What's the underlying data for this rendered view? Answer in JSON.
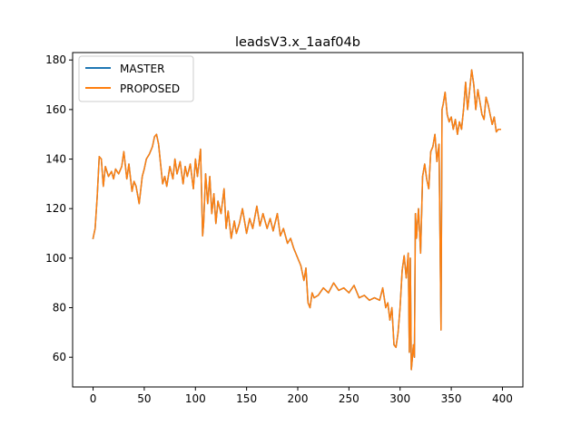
{
  "chart_data": {
    "type": "line",
    "title": "leadsV3.x_1aaf04b",
    "xlabel": "",
    "ylabel": "",
    "xlim": [
      -20,
      420
    ],
    "ylim": [
      48,
      183
    ],
    "xticks": [
      0,
      50,
      100,
      150,
      200,
      250,
      300,
      350,
      400
    ],
    "yticks": [
      60,
      80,
      100,
      120,
      140,
      160,
      180
    ],
    "grid": false,
    "legend_position": "top-left",
    "series": [
      {
        "name": "MASTER",
        "color": "#1f77b4",
        "x": [
          0,
          2,
          4,
          6,
          8,
          10,
          12,
          15,
          18,
          20,
          22,
          25,
          28,
          30,
          33,
          35,
          38,
          40,
          42,
          45,
          48,
          50,
          52,
          55,
          58,
          60,
          62,
          64,
          66,
          68,
          70,
          72,
          75,
          78,
          80,
          82,
          85,
          88,
          90,
          92,
          95,
          98,
          100,
          102,
          105,
          107,
          108,
          110,
          112,
          114,
          116,
          118,
          120,
          122,
          125,
          128,
          130,
          132,
          135,
          138,
          140,
          143,
          146,
          150,
          153,
          156,
          160,
          163,
          166,
          170,
          173,
          176,
          180,
          183,
          186,
          190,
          193,
          196,
          200,
          203,
          206,
          208,
          210,
          212,
          214,
          216,
          220,
          225,
          230,
          235,
          240,
          245,
          250,
          255,
          260,
          265,
          270,
          275,
          280,
          283,
          286,
          288,
          290,
          292,
          294,
          296,
          298,
          300,
          302,
          304,
          306,
          308,
          309,
          310,
          311,
          312,
          313,
          314,
          315,
          316,
          318,
          320,
          322,
          324,
          326,
          328,
          330,
          332,
          334,
          336,
          338,
          340,
          341,
          342,
          344,
          346,
          348,
          350,
          352,
          354,
          356,
          358,
          360,
          362,
          364,
          366,
          368,
          370,
          372,
          374,
          376,
          378,
          380,
          382,
          384,
          386,
          388,
          390,
          392,
          394,
          396,
          398
        ],
        "y": [
          108,
          112,
          125,
          141,
          140,
          129,
          137,
          133,
          135,
          132,
          136,
          134,
          137,
          143,
          132,
          138,
          127,
          131,
          129,
          122,
          133,
          136,
          140,
          142,
          145,
          149,
          150,
          146,
          138,
          130,
          133,
          129,
          137,
          132,
          140,
          134,
          139,
          130,
          137,
          133,
          138,
          128,
          140,
          133,
          144,
          109,
          114,
          134,
          122,
          133,
          118,
          126,
          114,
          123,
          118,
          128,
          112,
          119,
          108,
          115,
          110,
          114,
          120,
          110,
          116,
          112,
          121,
          113,
          118,
          112,
          116,
          111,
          118,
          109,
          112,
          106,
          108,
          104,
          100,
          97,
          91,
          96,
          82,
          80,
          86,
          84,
          85,
          88,
          86,
          90,
          87,
          88,
          86,
          89,
          84,
          85,
          83,
          84,
          83,
          88,
          80,
          82,
          75,
          80,
          65,
          64,
          70,
          80,
          95,
          101,
          92,
          102,
          62,
          100,
          55,
          60,
          65,
          60,
          118,
          108,
          120,
          102,
          133,
          138,
          132,
          128,
          143,
          145,
          150,
          139,
          146,
          71,
          160,
          162,
          167,
          158,
          155,
          157,
          152,
          156,
          150,
          155,
          152,
          160,
          171,
          160,
          168,
          176,
          170,
          160,
          168,
          163,
          158,
          156,
          165,
          162,
          158,
          154,
          157,
          151,
          152,
          152
        ],
        "note": "curve hidden beneath PROPOSED in the original"
      },
      {
        "name": "PROPOSED",
        "color": "#ff7f0e"
      }
    ]
  }
}
